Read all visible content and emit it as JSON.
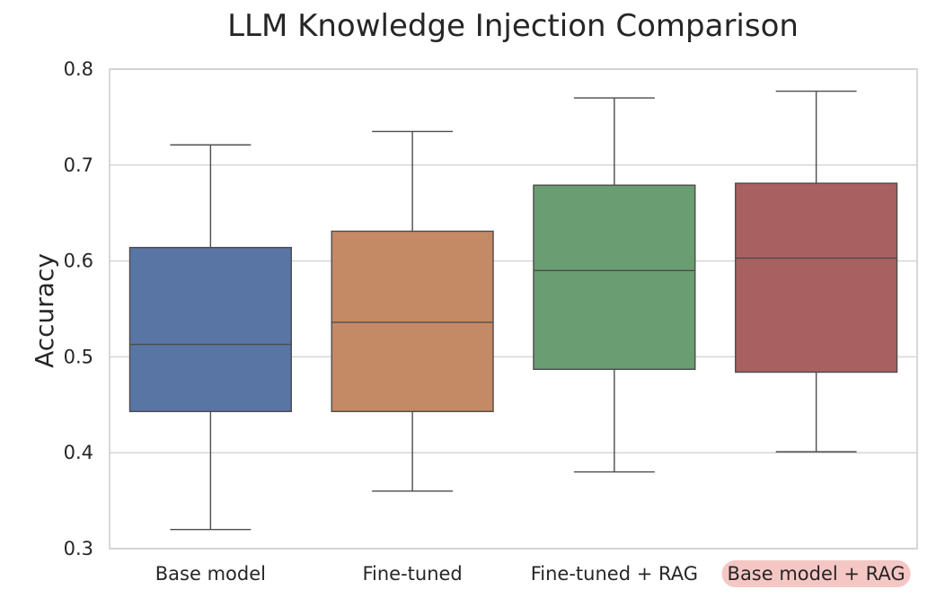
{
  "chart_data": {
    "type": "box",
    "title": "LLM Knowledge Injection Comparison",
    "xlabel": "",
    "ylabel": "Accuracy",
    "ylim": [
      0.3,
      0.8
    ],
    "yticks": [
      "0.3",
      "0.4",
      "0.5",
      "0.6",
      "0.7",
      "0.8"
    ],
    "grid": "on",
    "categories": [
      "Base model",
      "Fine-tuned",
      "Fine-tuned + RAG",
      "Base model + RAG"
    ],
    "series": [
      {
        "category": "Base model",
        "min": 0.32,
        "q1": 0.443,
        "median": 0.513,
        "q3": 0.614,
        "max": 0.721,
        "color": "#5975A4"
      },
      {
        "category": "Fine-tuned",
        "min": 0.36,
        "q1": 0.443,
        "median": 0.536,
        "q3": 0.631,
        "max": 0.735,
        "color": "#C48A65"
      },
      {
        "category": "Fine-tuned + RAG",
        "min": 0.38,
        "q1": 0.487,
        "median": 0.59,
        "q3": 0.679,
        "max": 0.77,
        "color": "#6A9D71"
      },
      {
        "category": "Base model + RAG",
        "min": 0.401,
        "q1": 0.484,
        "median": 0.603,
        "q3": 0.681,
        "max": 0.777,
        "color": "#A86160"
      }
    ],
    "highlighted_category": "Base model + RAG",
    "highlight_color": "#F4C7C5"
  }
}
